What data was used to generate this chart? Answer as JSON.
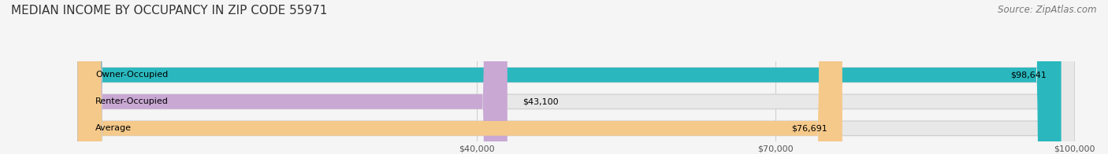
{
  "title": "MEDIAN INCOME BY OCCUPANCY IN ZIP CODE 55971",
  "source": "Source: ZipAtlas.com",
  "categories": [
    "Owner-Occupied",
    "Renter-Occupied",
    "Average"
  ],
  "values": [
    98641,
    43100,
    76691
  ],
  "bar_colors": [
    "#2ab8be",
    "#c9a8d4",
    "#f5c98a"
  ],
  "labels": [
    "$98,641",
    "$43,100",
    "$76,691"
  ],
  "xlim": [
    0,
    100000
  ],
  "xticks": [
    40000,
    70000,
    100000
  ],
  "xtick_labels": [
    "$40,000",
    "$70,000",
    "$100,000"
  ],
  "background_color": "#f5f5f5",
  "bar_background_color": "#e8e8e8",
  "bar_height": 0.55,
  "title_fontsize": 11,
  "source_fontsize": 8.5,
  "label_fontsize": 8,
  "tick_fontsize": 8
}
